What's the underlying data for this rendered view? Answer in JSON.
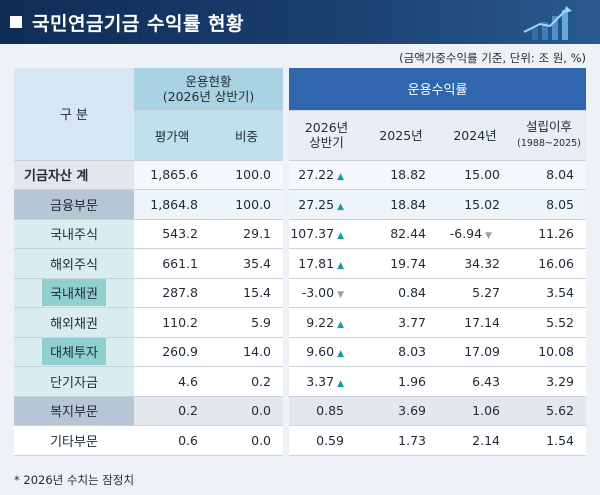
{
  "header": {
    "title": "국민연금기금 수익률 현황"
  },
  "note": "(금액가중수익률 기준, 단위: 조 원, %)",
  "table": {
    "col_gubun": "구 분",
    "group_status": "운용현황",
    "group_status_sub": "(2026년 상반기)",
    "group_return": "운용수익률",
    "sub_headers": {
      "value": "평가액",
      "weight": "비중",
      "r2026_line1": "2026년",
      "r2026_line2": "상반기",
      "r2025": "2025년",
      "r2024": "2024년",
      "since_line1": "설립이후",
      "since_line2": "(1988~2025)"
    },
    "rows": [
      {
        "label": "기금자산 계",
        "value": "1,865.6",
        "weight": "100.0",
        "r2026": "27.22",
        "trend": "up",
        "r2025": "18.82",
        "r2024": "15.00",
        "since": "8.04"
      },
      {
        "label": "금융부문",
        "value": "1,864.8",
        "weight": "100.0",
        "r2026": "27.25",
        "trend": "up",
        "r2025": "18.84",
        "r2024": "15.02",
        "since": "8.05"
      },
      {
        "label": "국내주식",
        "value": "543.2",
        "weight": "29.1",
        "r2026": "107.37",
        "trend": "up",
        "r2025": "82.44",
        "r2024": "-6.94",
        "r2024_trend": "down",
        "since": "11.26"
      },
      {
        "label": "해외주식",
        "value": "661.1",
        "weight": "35.4",
        "r2026": "17.81",
        "trend": "up",
        "r2025": "19.74",
        "r2024": "34.32",
        "since": "16.06"
      },
      {
        "label": "국내채권",
        "value": "287.8",
        "weight": "15.4",
        "r2026": "-3.00",
        "trend": "down",
        "r2025": "0.84",
        "r2024": "5.27",
        "since": "3.54"
      },
      {
        "label": "해외채권",
        "value": "110.2",
        "weight": "5.9",
        "r2026": "9.22",
        "trend": "up",
        "r2025": "3.77",
        "r2024": "17.14",
        "since": "5.52"
      },
      {
        "label": "대체투자",
        "value": "260.9",
        "weight": "14.0",
        "r2026": "9.60",
        "trend": "up",
        "r2025": "8.03",
        "r2024": "17.09",
        "since": "10.08"
      },
      {
        "label": "단기자금",
        "value": "4.6",
        "weight": "0.2",
        "r2026": "3.37",
        "trend": "up",
        "r2025": "1.96",
        "r2024": "6.43",
        "since": "3.29"
      },
      {
        "label": "복지부문",
        "value": "0.2",
        "weight": "0.0",
        "r2026": "0.85",
        "trend": "",
        "r2025": "3.69",
        "r2024": "1.06",
        "since": "5.62"
      },
      {
        "label": "기타부문",
        "value": "0.6",
        "weight": "0.0",
        "r2026": "0.59",
        "trend": "",
        "r2025": "1.73",
        "r2024": "2.14",
        "since": "1.54"
      }
    ]
  },
  "footnote": "* 2026년 수치는 잠정치",
  "icons": {
    "title_marker": "square-bullet-icon",
    "header_deco": "rising-bar-chart-icon",
    "up": "triangle-up-icon",
    "down": "triangle-down-icon"
  },
  "colors": {
    "header_bg": "#0f2c55",
    "return_header": "#2f66ad",
    "status_header": "#a9d3e2",
    "up_arrow": "#1c9aa3",
    "down_arrow": "#9aa0a8"
  }
}
